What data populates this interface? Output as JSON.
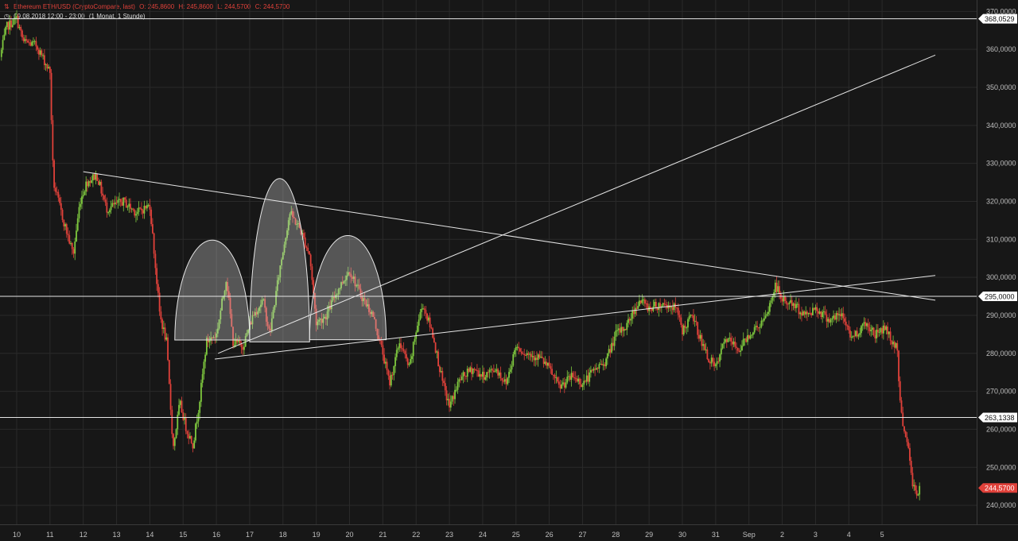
{
  "header": {
    "line1": {
      "icon": "candlestick-icon",
      "instrument": "Ethereum ETH/USD (CryptoCompare, last)",
      "open": "O: 245,8600",
      "high": "H: 245,8600",
      "low": "L: 244,5700",
      "close": "C: 244,5700"
    },
    "line2": {
      "icon": "clock-icon",
      "datetime": "09.08.2018 12:00 - 23:00",
      "range": "(1 Monat, 1 Stunde)"
    }
  },
  "colors": {
    "background": "#171717",
    "grid": "#2a2a2a",
    "up": "#7ec83e",
    "down": "#e0413a",
    "drawing": "#e6e6e6",
    "text": "#bfbfbf",
    "last_price_tag": "#e0413a"
  },
  "chart_data": {
    "type": "candlestick",
    "title": "Ethereum ETH/USD (CryptoCompare, last)",
    "y_axis_position": "right",
    "ylim": [
      235,
      373
    ],
    "y_ticks": [
      240,
      250,
      260,
      270,
      280,
      290,
      300,
      310,
      320,
      330,
      340,
      350,
      360,
      370
    ],
    "y_tick_labels": [
      "240,0000",
      "250,0000",
      "260,0000",
      "270,0000",
      "280,0000",
      "290,0000",
      "300,0000",
      "310,0000",
      "320,0000",
      "330,0000",
      "340,0000",
      "350,0000",
      "360,0000",
      "370,0000"
    ],
    "x_tick_labels": [
      "10",
      "11",
      "12",
      "13",
      "14",
      "15",
      "16",
      "17",
      "18",
      "19",
      "20",
      "21",
      "22",
      "23",
      "24",
      "25",
      "26",
      "27",
      "28",
      "29",
      "30",
      "31",
      "Sep",
      "2",
      "3",
      "4",
      "5"
    ],
    "x_day_index": [
      0,
      1,
      2,
      3,
      4,
      5,
      6,
      7,
      8,
      9,
      10,
      11,
      12,
      13,
      14,
      15,
      16,
      17,
      18,
      19,
      20,
      21,
      22,
      23,
      24,
      25,
      26
    ],
    "x_range_days": [
      -0.5,
      27.6
    ],
    "anchors": [
      [
        -0.5,
        358
      ],
      [
        -0.3,
        366
      ],
      [
        0,
        368
      ],
      [
        0.2,
        362
      ],
      [
        0.6,
        361
      ],
      [
        1.0,
        354
      ],
      [
        1.1,
        325
      ],
      [
        1.4,
        315
      ],
      [
        1.7,
        306
      ],
      [
        1.9,
        320
      ],
      [
        2.1,
        325
      ],
      [
        2.4,
        327
      ],
      [
        2.7,
        318
      ],
      [
        3.2,
        320
      ],
      [
        3.6,
        317
      ],
      [
        4.0,
        319
      ],
      [
        4.3,
        290
      ],
      [
        4.5,
        283
      ],
      [
        4.7,
        255
      ],
      [
        4.9,
        267
      ],
      [
        5.1,
        260
      ],
      [
        5.3,
        256
      ],
      [
        5.5,
        268
      ],
      [
        5.7,
        283
      ],
      [
        6.0,
        285
      ],
      [
        6.3,
        300
      ],
      [
        6.5,
        283
      ],
      [
        6.8,
        282
      ],
      [
        7.1,
        290
      ],
      [
        7.4,
        294
      ],
      [
        7.6,
        285
      ],
      [
        7.9,
        302
      ],
      [
        8.2,
        317
      ],
      [
        8.5,
        313
      ],
      [
        8.8,
        306
      ],
      [
        9.0,
        288
      ],
      [
        9.3,
        290
      ],
      [
        9.6,
        296
      ],
      [
        10.0,
        302
      ],
      [
        10.3,
        296
      ],
      [
        10.7,
        290
      ],
      [
        11.0,
        280
      ],
      [
        11.2,
        272
      ],
      [
        11.5,
        283
      ],
      [
        11.8,
        276
      ],
      [
        12.0,
        286
      ],
      [
        12.2,
        293
      ],
      [
        12.5,
        285
      ],
      [
        12.8,
        272
      ],
      [
        13.0,
        266
      ],
      [
        13.3,
        273
      ],
      [
        13.7,
        276
      ],
      [
        14.0,
        274
      ],
      [
        14.4,
        276
      ],
      [
        14.7,
        272
      ],
      [
        15.0,
        282
      ],
      [
        15.3,
        280
      ],
      [
        15.7,
        279
      ],
      [
        16.0,
        276
      ],
      [
        16.3,
        271
      ],
      [
        16.7,
        274
      ],
      [
        17.0,
        272
      ],
      [
        17.4,
        276
      ],
      [
        17.7,
        278
      ],
      [
        18.0,
        285
      ],
      [
        18.3,
        287
      ],
      [
        18.7,
        294
      ],
      [
        19.0,
        292
      ],
      [
        19.4,
        293
      ],
      [
        19.8,
        292
      ],
      [
        20.0,
        286
      ],
      [
        20.3,
        290
      ],
      [
        20.7,
        280
      ],
      [
        21.0,
        276
      ],
      [
        21.3,
        284
      ],
      [
        21.7,
        281
      ],
      [
        22.0,
        285
      ],
      [
        22.5,
        289
      ],
      [
        22.8,
        298
      ],
      [
        23.0,
        294
      ],
      [
        23.3,
        293
      ],
      [
        23.7,
        290
      ],
      [
        24.0,
        292
      ],
      [
        24.4,
        289
      ],
      [
        24.8,
        290
      ],
      [
        25.1,
        284
      ],
      [
        25.5,
        288
      ],
      [
        25.8,
        285
      ],
      [
        26.1,
        287
      ],
      [
        26.3,
        283
      ],
      [
        26.45,
        282
      ],
      [
        26.55,
        265
      ],
      [
        26.7,
        259
      ],
      [
        26.8,
        254
      ],
      [
        26.9,
        246
      ],
      [
        27.05,
        243
      ],
      [
        27.15,
        244.57
      ]
    ],
    "horizontal_lines": [
      {
        "price": 368.0529,
        "label": "368,0529"
      },
      {
        "price": 295.0,
        "label": "295,0000"
      },
      {
        "price": 263.1338,
        "label": "263,1338"
      }
    ],
    "last_price": {
      "price": 244.57,
      "label": "244,5700"
    },
    "trend_lines": [
      {
        "from": [
          2.0,
          327.8
        ],
        "to": [
          27.6,
          294.0
        ]
      },
      {
        "from": [
          6.05,
          280.0
        ],
        "to": [
          27.6,
          358.5
        ]
      },
      {
        "from": [
          5.95,
          278.5
        ],
        "to": [
          27.6,
          300.5
        ]
      }
    ],
    "arcs": [
      {
        "x1": 4.75,
        "x2": 7.0,
        "base": 283.5,
        "top": 309.8
      },
      {
        "x1": 7.0,
        "x2": 8.8,
        "base": 283.0,
        "top": 326.0
      },
      {
        "x1": 8.8,
        "x2": 11.1,
        "base": 283.6,
        "top": 311.0
      }
    ]
  }
}
